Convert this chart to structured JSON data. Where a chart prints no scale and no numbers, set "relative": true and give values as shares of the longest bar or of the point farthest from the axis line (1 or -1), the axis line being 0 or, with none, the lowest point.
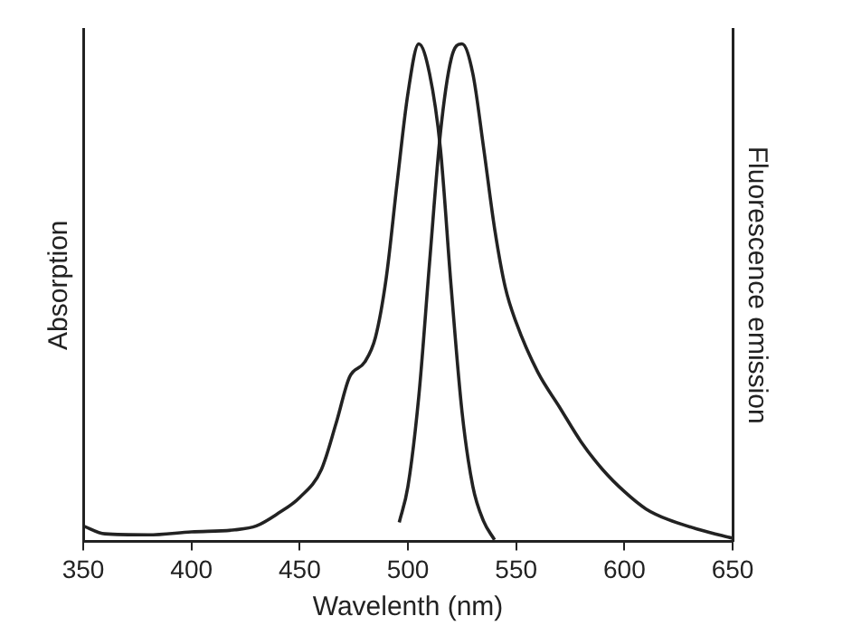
{
  "chart_data": {
    "type": "line",
    "relative": true,
    "xlabel": "Wavelenth (nm)",
    "ylabel": "Absorption",
    "y2label": "Fluorescence emission",
    "xlim": [
      350,
      650
    ],
    "xticks": [
      350,
      400,
      450,
      500,
      550,
      600,
      650
    ],
    "grid": false,
    "legend": false,
    "marker": "none",
    "line_style": "solid",
    "series": [
      {
        "color": "#222222",
        "x": [
          350,
          360,
          380,
          400,
          420,
          430,
          440,
          450,
          460,
          467,
          473,
          480,
          485,
          490,
          495,
          500,
          505,
          510,
          515,
          520,
          525,
          530,
          535,
          540
        ],
        "values": [
          0.031,
          0.015,
          0.013,
          0.019,
          0.023,
          0.031,
          0.056,
          0.088,
          0.144,
          0.24,
          0.33,
          0.36,
          0.41,
          0.53,
          0.72,
          0.9,
          1,
          0.94,
          0.79,
          0.51,
          0.26,
          0.11,
          0.04,
          0.003
        ]
      },
      {
        "color": "#222222",
        "axis": "y2",
        "x": [
          496,
          500,
          505,
          510,
          515,
          520,
          525,
          530,
          535,
          540,
          545,
          550,
          560,
          570,
          580,
          590,
          600,
          610,
          620,
          635,
          650
        ],
        "values": [
          0.038,
          0.11,
          0.29,
          0.56,
          0.82,
          0.97,
          1,
          0.94,
          0.79,
          0.63,
          0.51,
          0.44,
          0.34,
          0.27,
          0.2,
          0.144,
          0.1,
          0.065,
          0.044,
          0.023,
          0.006
        ]
      }
    ]
  }
}
